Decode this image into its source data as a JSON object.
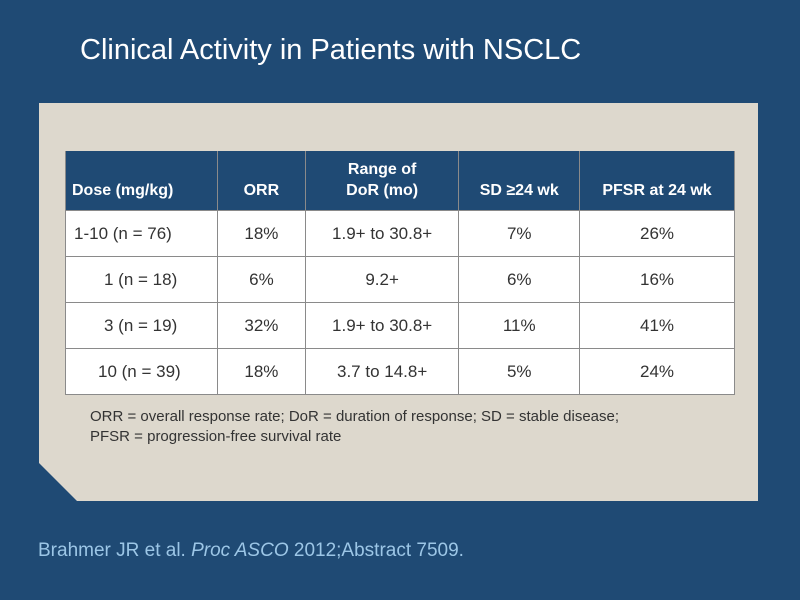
{
  "slide": {
    "title": "Clinical Activity in Patients with NSCLC"
  },
  "table": {
    "headers": {
      "dose": "Dose (mg/kg)",
      "orr": "ORR",
      "dor_line1": "Range of",
      "dor_line2": "DoR (mo)",
      "sd": "SD ≥24 wk",
      "pfsr": "PFSR at 24 wk"
    },
    "rows": [
      {
        "dose": "1-10 (n = 76)",
        "orr": "18%",
        "dor": "1.9+ to 30.8+",
        "sd": "7%",
        "pfsr": "26%"
      },
      {
        "dose": "1 (n = 18)",
        "orr": "6%",
        "dor": "9.2+",
        "sd": "6%",
        "pfsr": "16%"
      },
      {
        "dose": "3 (n = 19)",
        "orr": "32%",
        "dor": "1.9+ to 30.8+",
        "sd": "11%",
        "pfsr": "41%"
      },
      {
        "dose": "10 (n = 39)",
        "orr": "18%",
        "dor": "3.7 to 14.8+",
        "sd": "5%",
        "pfsr": "24%"
      }
    ]
  },
  "footnote": {
    "line1": "ORR = overall response rate; DoR = duration of response; SD = stable disease;",
    "line2": "PFSR = progression-free survival rate"
  },
  "citation": {
    "authors": "Brahmer JR et al. ",
    "journal": "Proc ASCO",
    "details": " 2012;Abstract 7509."
  },
  "colors": {
    "background": "#1f4a74",
    "panel": "#ddd8cd",
    "header": "#1f4a74",
    "citation": "#9cc6e6"
  }
}
